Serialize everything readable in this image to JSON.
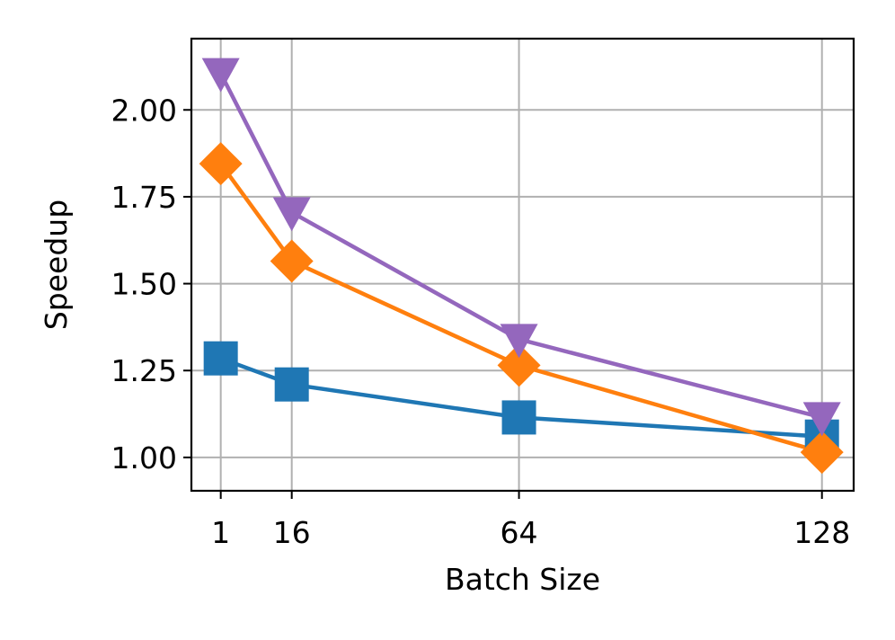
{
  "chart_data": {
    "type": "line",
    "xlabel": "Batch Size",
    "ylabel": "Speedup",
    "x": [
      1,
      16,
      64,
      128
    ],
    "xticks": [
      1,
      16,
      64,
      128
    ],
    "xtick_labels": [
      "1",
      "16",
      "64",
      "128"
    ],
    "xlim": [
      -5.2,
      134.7
    ],
    "yticks": [
      1.0,
      1.25,
      1.5,
      1.75,
      2.0
    ],
    "ytick_labels": [
      "1.00",
      "1.25",
      "1.50",
      "1.75",
      "2.00"
    ],
    "ylim": [
      0.904,
      2.205
    ],
    "grid": true,
    "series": [
      {
        "color": "#1f77b4",
        "marker": "square",
        "values": [
          1.285,
          1.21,
          1.115,
          1.06
        ]
      },
      {
        "color": "#ff7f0e",
        "marker": "diamond",
        "values": [
          1.845,
          1.565,
          1.265,
          1.015
        ]
      },
      {
        "color": "#9467bd",
        "marker": "triangle-down",
        "values": [
          2.105,
          1.705,
          1.34,
          1.115
        ]
      }
    ]
  }
}
